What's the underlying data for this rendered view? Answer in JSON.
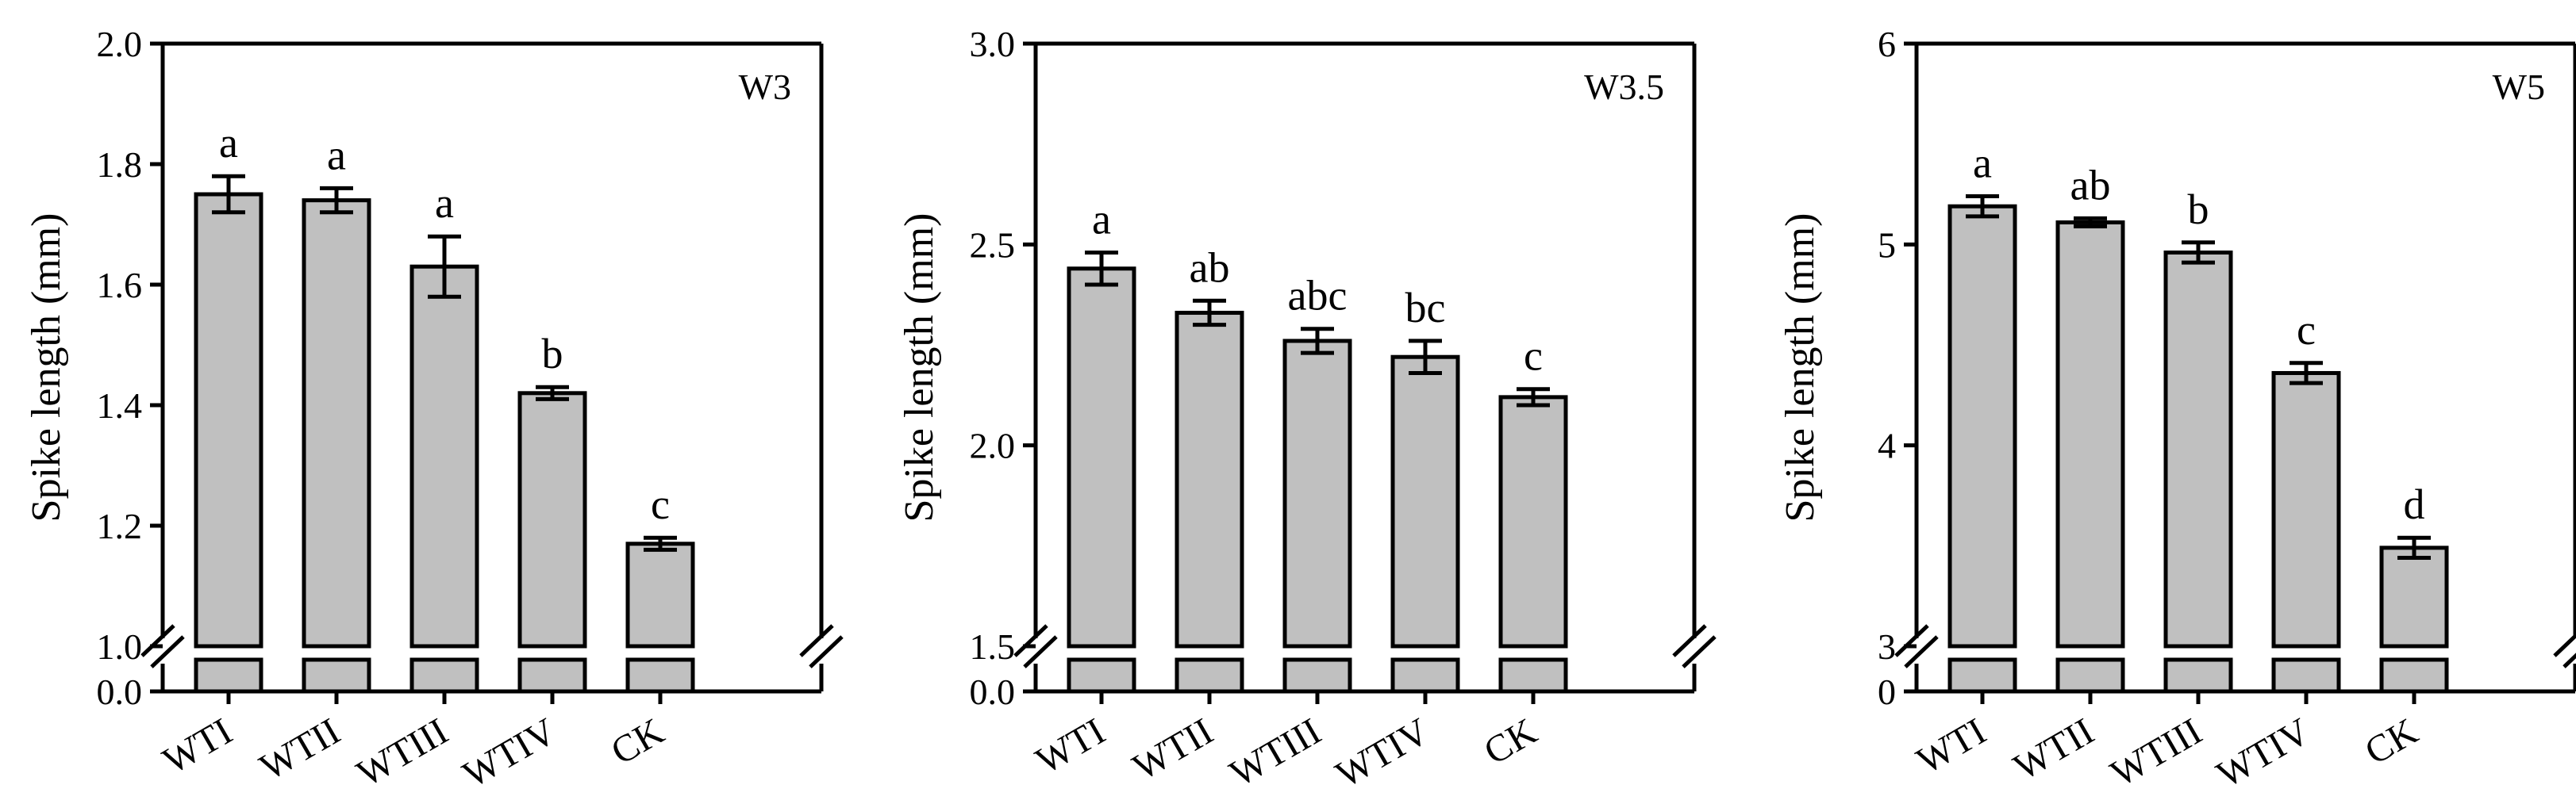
{
  "chart_data": [
    {
      "type": "bar",
      "panel_label": "W3",
      "ylabel": "Spike length (mm)",
      "ylim": [
        1.0,
        2.0
      ],
      "yticks": [
        "1.0",
        "1.2",
        "1.4",
        "1.6",
        "1.8",
        "2.0"
      ],
      "ybreak_bottom_label": "0.0",
      "categories": [
        "WTI",
        "WTII",
        "WTIII",
        "WTIV",
        "CK"
      ],
      "values": [
        1.75,
        1.74,
        1.63,
        1.42,
        1.17
      ],
      "errors": [
        0.03,
        0.02,
        0.05,
        0.01,
        0.01
      ],
      "letters": [
        "a",
        "a",
        "a",
        "b",
        "c"
      ],
      "bar_color": "#c0c0c0"
    },
    {
      "type": "bar",
      "panel_label": "W3.5",
      "ylabel": "Spike length (mm)",
      "ylim": [
        1.5,
        3.0
      ],
      "yticks": [
        "1.5",
        "2.0",
        "2.5",
        "3.0"
      ],
      "ybreak_bottom_label": "0.0",
      "categories": [
        "WTI",
        "WTII",
        "WTIII",
        "WTIV",
        "CK"
      ],
      "values": [
        2.44,
        2.33,
        2.26,
        2.22,
        2.12
      ],
      "errors": [
        0.04,
        0.03,
        0.03,
        0.04,
        0.02
      ],
      "letters": [
        "a",
        "ab",
        "abc",
        "bc",
        "c"
      ],
      "bar_color": "#c0c0c0"
    },
    {
      "type": "bar",
      "panel_label": "W5",
      "ylabel": "Spike length (mm)",
      "ylim": [
        3,
        6
      ],
      "yticks": [
        "3",
        "4",
        "5",
        "6"
      ],
      "ybreak_bottom_label": "0",
      "categories": [
        "WTI",
        "WTII",
        "WTIII",
        "WTIV",
        "CK"
      ],
      "values": [
        5.19,
        5.11,
        4.96,
        4.36,
        3.49
      ],
      "errors": [
        0.05,
        0.02,
        0.05,
        0.05,
        0.05
      ],
      "letters": [
        "a",
        "ab",
        "b",
        "c",
        "d"
      ],
      "bar_color": "#c0c0c0"
    }
  ]
}
